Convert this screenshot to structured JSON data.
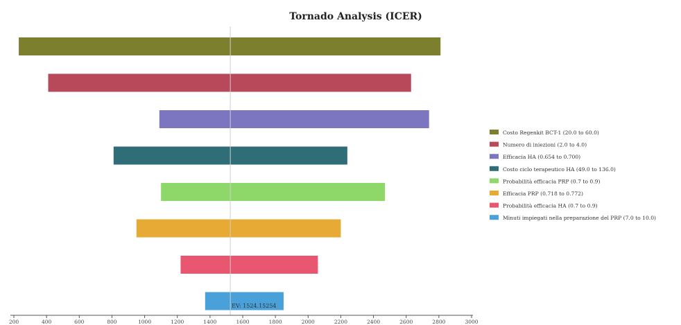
{
  "chart_data": {
    "type": "bar",
    "orientation": "horizontal",
    "title": "Tornado Analysis (ICER)",
    "xlim": [
      200,
      3000
    ],
    "x_ticks": [
      200,
      400,
      600,
      800,
      1000,
      1200,
      1400,
      1600,
      1800,
      2000,
      2200,
      2400,
      2600,
      2800,
      3000
    ],
    "ev": 1524.15254,
    "ev_label": "EV: 1524.15254",
    "grid": false,
    "legend_position": "right",
    "series": [
      {
        "name": "Costo Regenkit BCT-1 (20.0 to 60.0)",
        "low": 230,
        "high": 2810,
        "color": "#7c7f2e"
      },
      {
        "name": "Numero di iniezioni (2.0 to 4.0)",
        "low": 410,
        "high": 2630,
        "color": "#b8495b"
      },
      {
        "name": "Efficacia HA (0.654 to 0.700)",
        "low": 1090,
        "high": 2740,
        "color": "#7c76c0"
      },
      {
        "name": "Costo ciclo terapeutico HA (49.0 to 136.0)",
        "low": 810,
        "high": 2240,
        "color": "#2f6e76"
      },
      {
        "name": "Probabilità efficacia PRP (0.7 to 0.9)",
        "low": 1100,
        "high": 2470,
        "color": "#8ed769"
      },
      {
        "name": "Efficacia PRP (0.718 to 0.772)",
        "low": 950,
        "high": 2200,
        "color": "#e7ab35"
      },
      {
        "name": "Probabilità efficacia HA (0.7 to 0.9)",
        "low": 1220,
        "high": 2060,
        "color": "#e85670"
      },
      {
        "name": "Minuti impiegati nella preparazione del PRP (7.0 to 10.0)",
        "low": 1370,
        "high": 1850,
        "color": "#4aa0d8"
      }
    ]
  }
}
